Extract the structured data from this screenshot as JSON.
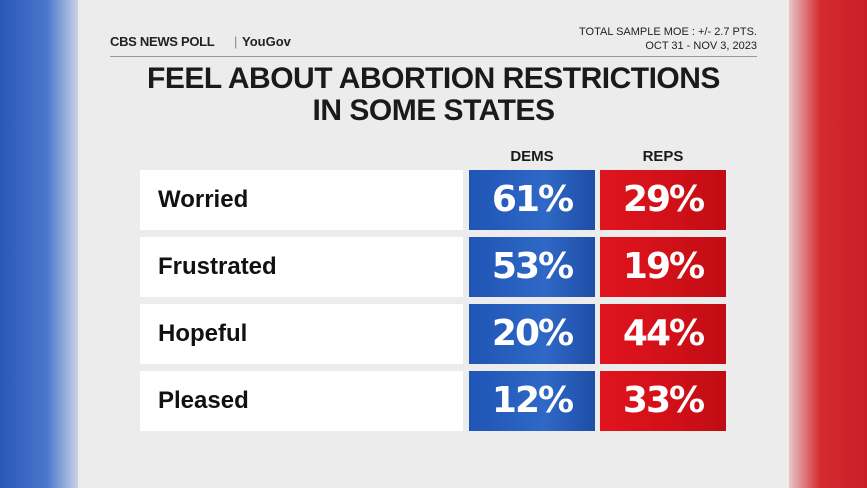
{
  "header": {
    "logo": "CBS NEWS POLL",
    "partner": "YouGov",
    "moe": "TOTAL SAMPLE MOE : +/- 2.7 PTS.",
    "dates": "OCT 31 - NOV 3, 2023"
  },
  "title": [
    "FEEL ABOUT ABORTION RESTRICTIONS",
    "IN SOME STATES"
  ],
  "table": {
    "columns": [
      "DEMS",
      "REPS"
    ],
    "rows": [
      [
        "Worried",
        "61%",
        "29%"
      ],
      [
        "Frustrated",
        "53%",
        "19%"
      ],
      [
        "Hopeful",
        "20%",
        "44%"
      ],
      [
        "Pleased",
        "12%",
        "33%"
      ]
    ]
  }
}
